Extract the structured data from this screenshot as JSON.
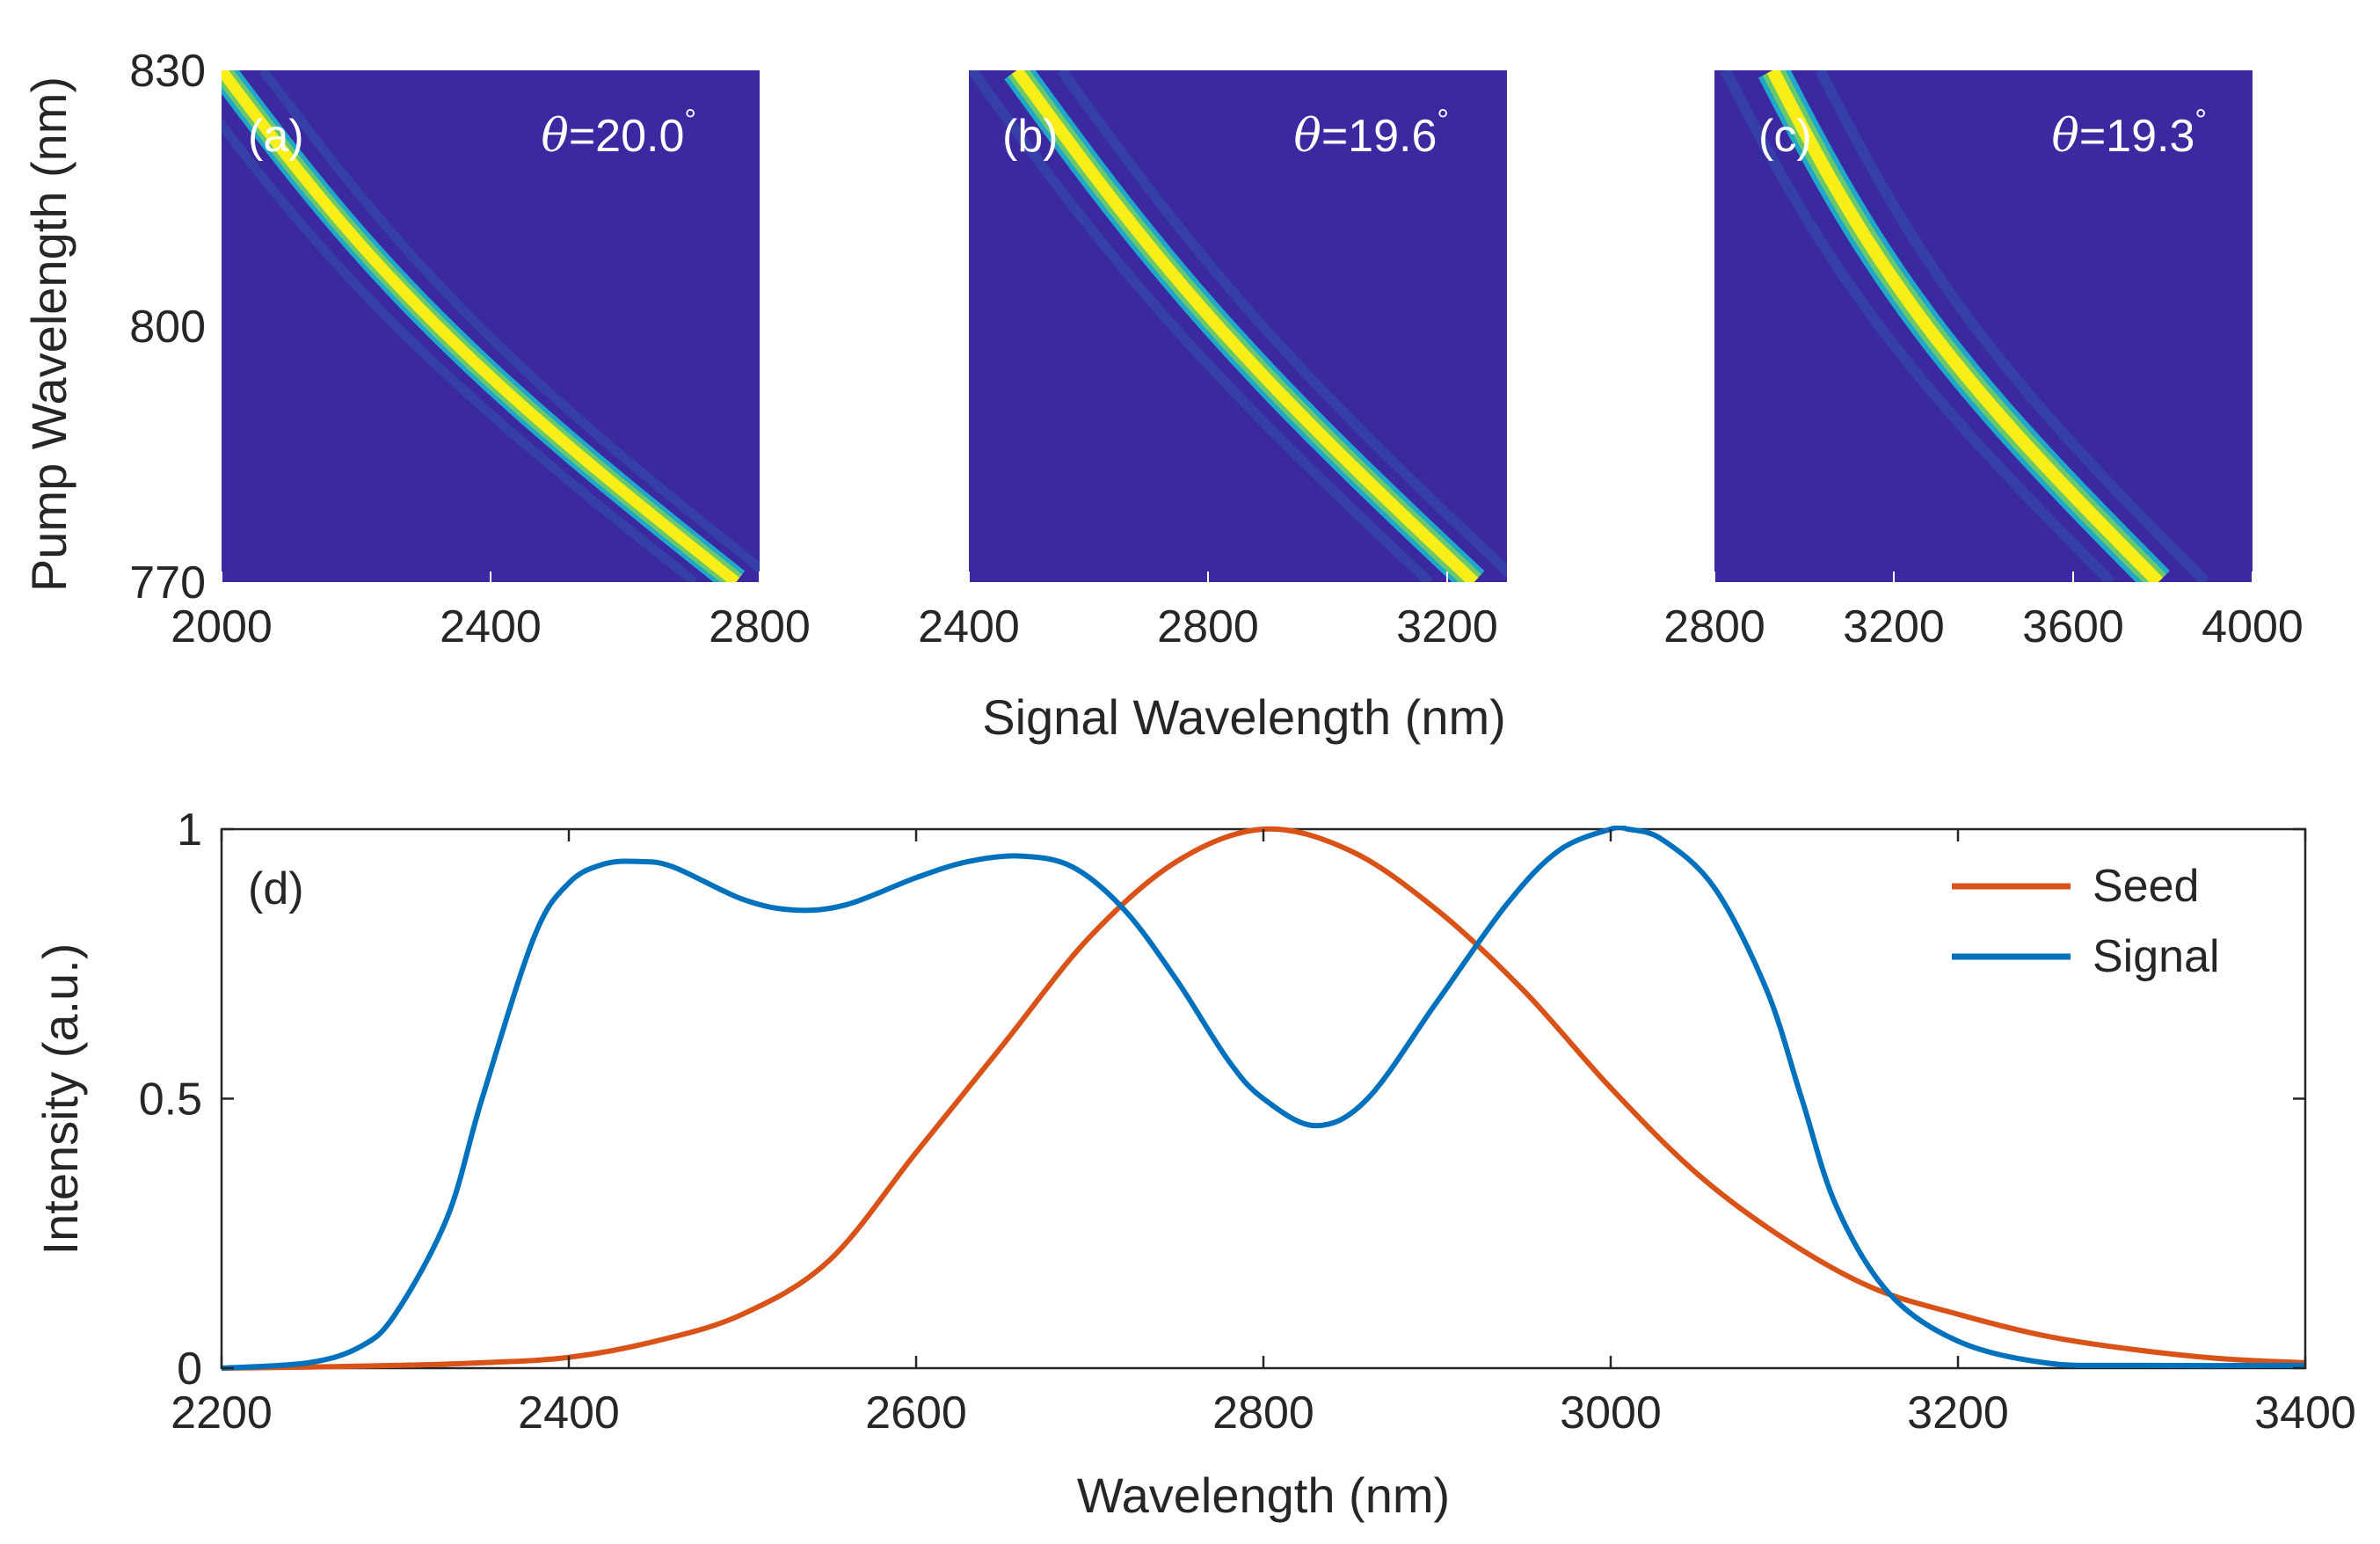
{
  "figure": {
    "shared_xlabel": "Signal Wavelength (nm)",
    "shared_ylabel": "Pump Wavelength (nm)"
  },
  "chart_data": [
    {
      "type": "heatmap",
      "panel_label": "(a)",
      "annotation": "θ=20.0°",
      "angle_symbol": "θ",
      "angle_value": "=20.0",
      "degree_symbol": "°",
      "xlim": [
        2000,
        2800
      ],
      "ylim": [
        770,
        830
      ],
      "xticks": [
        2000,
        2400,
        2800
      ],
      "yticks": [
        770,
        800,
        830
      ],
      "xlabel": "Signal Wavelength (nm)",
      "ylabel": "Pump Wavelength (nm)",
      "ridge": {
        "pump": [
          830,
          770
        ],
        "signal": [
          2000,
          2765
        ],
        "curvature": 0.08,
        "width_nm": 28
      },
      "colors": {
        "background": "#3a29a0",
        "ridge_edge": "#1fa8c9",
        "ridge_mid": "#6cc96a",
        "ridge_peak": "#f9ee18"
      }
    },
    {
      "type": "heatmap",
      "panel_label": "(b)",
      "annotation": "θ=19.6°",
      "angle_symbol": "θ",
      "angle_value": "=19.6",
      "degree_symbol": "°",
      "xlim": [
        2400,
        3300
      ],
      "ylim": [
        770,
        830
      ],
      "xticks": [
        2400,
        2800,
        3200
      ],
      "yticks": [
        770,
        800,
        830
      ],
      "ridge": {
        "pump": [
          830,
          770
        ],
        "signal": [
          2480,
          3245
        ],
        "curvature": 0.06,
        "width_nm": 34
      },
      "colors": {
        "background": "#3a29a0",
        "ridge_edge": "#1fa8c9",
        "ridge_mid": "#6cc96a",
        "ridge_peak": "#f9ee18"
      }
    },
    {
      "type": "heatmap",
      "panel_label": "(c)",
      "annotation": "θ=19.3°",
      "angle_symbol": "θ",
      "angle_value": "=19.3",
      "degree_symbol": "°",
      "xlim": [
        2800,
        4000
      ],
      "ylim": [
        770,
        830
      ],
      "xticks": [
        2800,
        3200,
        3600,
        4000
      ],
      "yticks": [
        770,
        800,
        830
      ],
      "ridge": {
        "pump": [
          830,
          770
        ],
        "signal": [
          2930,
          3790
        ],
        "curvature": 0.1,
        "width_nm": 48
      },
      "colors": {
        "background": "#3a29a0",
        "ridge_edge": "#1fa8c9",
        "ridge_mid": "#6cc96a",
        "ridge_peak": "#f9ee18"
      }
    },
    {
      "type": "line",
      "panel_label": "(d)",
      "xlabel": "Wavelength (nm)",
      "ylabel": "Intensity (a.u.)",
      "xlim": [
        2200,
        3400
      ],
      "ylim": [
        0,
        1
      ],
      "xticks": [
        2200,
        2400,
        2600,
        2800,
        3000,
        3200,
        3400
      ],
      "yticks": [
        0,
        0.5,
        1
      ],
      "ytick_labels": [
        "0",
        "0.5",
        "1"
      ],
      "legend": "top-right",
      "series": [
        {
          "name": "Seed",
          "color": "#d95319",
          "x": [
            2200,
            2250,
            2300,
            2350,
            2400,
            2450,
            2500,
            2550,
            2600,
            2650,
            2700,
            2750,
            2800,
            2850,
            2900,
            2950,
            3000,
            3050,
            3100,
            3150,
            3200,
            3250,
            3300,
            3350,
            3400
          ],
          "y": [
            0.0,
            0.002,
            0.005,
            0.01,
            0.02,
            0.05,
            0.1,
            0.2,
            0.4,
            0.6,
            0.8,
            0.94,
            1.0,
            0.96,
            0.85,
            0.7,
            0.52,
            0.36,
            0.24,
            0.15,
            0.1,
            0.06,
            0.035,
            0.018,
            0.01
          ]
        },
        {
          "name": "Signal",
          "color": "#0072bd",
          "x": [
            2200,
            2250,
            2280,
            2300,
            2330,
            2350,
            2380,
            2400,
            2420,
            2440,
            2460,
            2500,
            2530,
            2560,
            2600,
            2630,
            2660,
            2690,
            2720,
            2750,
            2780,
            2800,
            2830,
            2860,
            2900,
            2940,
            2970,
            3000,
            3010,
            3030,
            3060,
            3090,
            3110,
            3130,
            3160,
            3200,
            3250,
            3300,
            3400
          ],
          "y": [
            0.0,
            0.01,
            0.04,
            0.1,
            0.28,
            0.5,
            0.8,
            0.9,
            0.935,
            0.94,
            0.93,
            0.87,
            0.85,
            0.86,
            0.91,
            0.94,
            0.95,
            0.93,
            0.85,
            0.72,
            0.57,
            0.5,
            0.45,
            0.5,
            0.68,
            0.86,
            0.96,
            1.0,
            1.0,
            0.98,
            0.89,
            0.7,
            0.5,
            0.3,
            0.14,
            0.05,
            0.01,
            0.005,
            0.005
          ]
        }
      ]
    }
  ]
}
